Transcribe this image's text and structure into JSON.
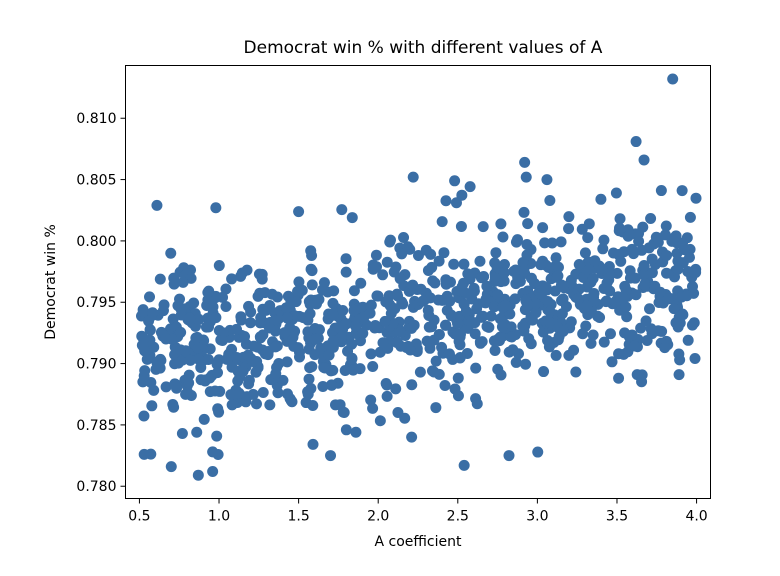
{
  "chart_data": {
    "type": "scatter",
    "title": "Democrat win % with different values of A",
    "xlabel": "A coefficient",
    "ylabel": "Democrat win %",
    "xlim": [
      0.4125,
      4.0875
    ],
    "ylim": [
      0.779,
      0.8143
    ],
    "xticks": [
      0.5,
      1.0,
      1.5,
      2.0,
      2.5,
      3.0,
      3.5,
      4.0
    ],
    "xtick_labels": [
      "0.5",
      "1.0",
      "1.5",
      "2.0",
      "2.5",
      "3.0",
      "3.5",
      "4.0"
    ],
    "yticks": [
      0.78,
      0.785,
      0.79,
      0.795,
      0.8,
      0.805,
      0.81
    ],
    "ytick_labels": [
      "0.780",
      "0.785",
      "0.790",
      "0.795",
      "0.800",
      "0.805",
      "0.810"
    ],
    "grid": false,
    "marker_color": "#3a6ea5",
    "n_points": 1000,
    "trend": {
      "slope": 0.0017,
      "intercept": 0.7902,
      "noise_sd": 0.0031,
      "seed": 12345
    },
    "notable_points": [
      {
        "x": 3.85,
        "y": 0.8132
      },
      {
        "x": 3.62,
        "y": 0.8081
      },
      {
        "x": 3.67,
        "y": 0.8066
      },
      {
        "x": 2.22,
        "y": 0.8052
      },
      {
        "x": 2.48,
        "y": 0.8049
      },
      {
        "x": 2.92,
        "y": 0.8064
      },
      {
        "x": 2.93,
        "y": 0.8052
      },
      {
        "x": 3.06,
        "y": 0.805
      },
      {
        "x": 0.61,
        "y": 0.8029
      },
      {
        "x": 0.98,
        "y": 0.8027
      },
      {
        "x": 0.53,
        "y": 0.7826
      },
      {
        "x": 0.87,
        "y": 0.7809
      },
      {
        "x": 0.7,
        "y": 0.7816
      },
      {
        "x": 0.96,
        "y": 0.7812
      },
      {
        "x": 0.96,
        "y": 0.7828
      },
      {
        "x": 2.54,
        "y": 0.7817
      },
      {
        "x": 2.21,
        "y": 0.784
      },
      {
        "x": 1.8,
        "y": 0.7846
      },
      {
        "x": 1.86,
        "y": 0.7844
      },
      {
        "x": 0.77,
        "y": 0.7843
      },
      {
        "x": 0.86,
        "y": 0.7844
      },
      {
        "x": 3.89,
        "y": 0.7891
      },
      {
        "x": 3.51,
        "y": 0.7888
      },
      {
        "x": 3.8,
        "y": 0.7913
      }
    ]
  }
}
